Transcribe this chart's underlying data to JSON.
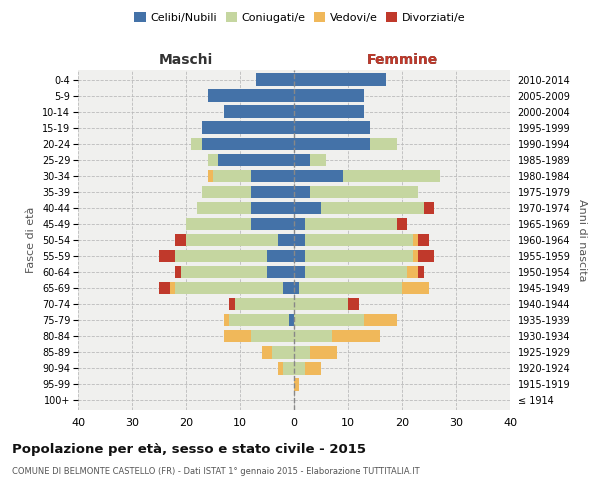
{
  "age_groups": [
    "100+",
    "95-99",
    "90-94",
    "85-89",
    "80-84",
    "75-79",
    "70-74",
    "65-69",
    "60-64",
    "55-59",
    "50-54",
    "45-49",
    "40-44",
    "35-39",
    "30-34",
    "25-29",
    "20-24",
    "15-19",
    "10-14",
    "5-9",
    "0-4"
  ],
  "birth_years": [
    "≤ 1914",
    "1915-1919",
    "1920-1924",
    "1925-1929",
    "1930-1934",
    "1935-1939",
    "1940-1944",
    "1945-1949",
    "1950-1954",
    "1955-1959",
    "1960-1964",
    "1965-1969",
    "1970-1974",
    "1975-1979",
    "1980-1984",
    "1985-1989",
    "1990-1994",
    "1995-1999",
    "2000-2004",
    "2005-2009",
    "2010-2014"
  ],
  "maschi": {
    "celibi": [
      0,
      0,
      0,
      0,
      0,
      1,
      0,
      2,
      5,
      5,
      3,
      8,
      8,
      8,
      8,
      14,
      17,
      17,
      13,
      16,
      7
    ],
    "coniugati": [
      0,
      0,
      2,
      4,
      8,
      11,
      11,
      20,
      16,
      17,
      17,
      12,
      10,
      9,
      7,
      2,
      2,
      0,
      0,
      0,
      0
    ],
    "vedovi": [
      0,
      0,
      1,
      2,
      5,
      1,
      0,
      1,
      0,
      0,
      0,
      0,
      0,
      0,
      1,
      0,
      0,
      0,
      0,
      0,
      0
    ],
    "divorziati": [
      0,
      0,
      0,
      0,
      0,
      0,
      1,
      2,
      1,
      3,
      2,
      0,
      0,
      0,
      0,
      0,
      0,
      0,
      0,
      0,
      0
    ]
  },
  "femmine": {
    "nubili": [
      0,
      0,
      0,
      0,
      0,
      0,
      0,
      1,
      2,
      2,
      2,
      2,
      5,
      3,
      9,
      3,
      14,
      14,
      13,
      13,
      17
    ],
    "coniugate": [
      0,
      0,
      2,
      3,
      7,
      13,
      10,
      19,
      19,
      20,
      20,
      17,
      19,
      20,
      18,
      3,
      5,
      0,
      0,
      0,
      0
    ],
    "vedove": [
      0,
      1,
      3,
      5,
      9,
      6,
      0,
      5,
      2,
      1,
      1,
      0,
      0,
      0,
      0,
      0,
      0,
      0,
      0,
      0,
      0
    ],
    "divorziate": [
      0,
      0,
      0,
      0,
      0,
      0,
      2,
      0,
      1,
      3,
      2,
      2,
      2,
      0,
      0,
      0,
      0,
      0,
      0,
      0,
      0
    ]
  },
  "colors": {
    "celibi": "#4472a8",
    "coniugati": "#c5d6a0",
    "vedovi": "#f0b85a",
    "divorziati": "#c0392b"
  },
  "title": "Popolazione per età, sesso e stato civile - 2015",
  "subtitle": "COMUNE DI BELMONTE CASTELLO (FR) - Dati ISTAT 1° gennaio 2015 - Elaborazione TUTTITALIA.IT",
  "xlabel_left": "Maschi",
  "xlabel_right": "Femmine",
  "ylabel_left": "Fasce di età",
  "ylabel_right": "Anni di nascita",
  "xlim": 40,
  "bg_color": "#ffffff",
  "grid_color": "#cccccc",
  "legend_labels": [
    "Celibi/Nubili",
    "Coniugati/e",
    "Vedovi/e",
    "Divorziati/e"
  ]
}
